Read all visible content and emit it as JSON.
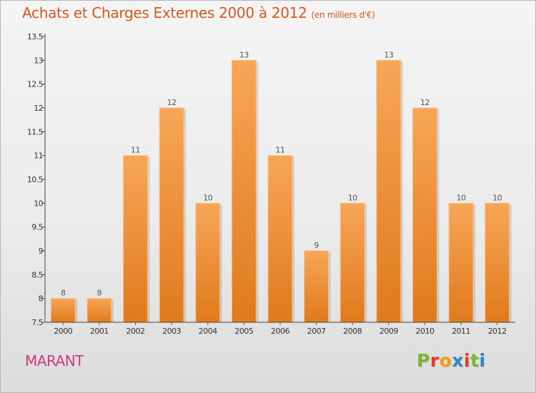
{
  "chart_data": {
    "type": "bar",
    "title": "Achats et Charges Externes 2000 à 2012",
    "subtitle": "(en milliers d'€)",
    "categories": [
      "2000",
      "2001",
      "2002",
      "2003",
      "2004",
      "2005",
      "2006",
      "2007",
      "2008",
      "2009",
      "2010",
      "2011",
      "2012"
    ],
    "values": [
      8,
      8,
      11,
      12,
      10,
      13,
      11,
      9,
      10,
      13,
      12,
      10,
      10
    ],
    "value_labels": [
      "8",
      "8",
      "11",
      "12",
      "10",
      "13",
      "11",
      "9",
      "10",
      "13",
      "12",
      "10",
      "10"
    ],
    "ylim": [
      7.5,
      13.5
    ],
    "yticks": [
      "7.5",
      "8",
      "8.5",
      "9",
      "9.5",
      "10",
      "10.5",
      "11",
      "11.5",
      "12",
      "12.5",
      "13",
      "13.5"
    ],
    "grid": false,
    "bar_color_top": "#f7a657",
    "bar_color_bottom": "#e07a1c"
  },
  "footer": {
    "commune": "MARANT",
    "logo": "Proxiti",
    "logo_colors": [
      "#7cb82f",
      "#e8372f",
      "#f39c12",
      "#2c84c7",
      "#e8372f",
      "#7cb82f",
      "#2c84c7"
    ]
  }
}
